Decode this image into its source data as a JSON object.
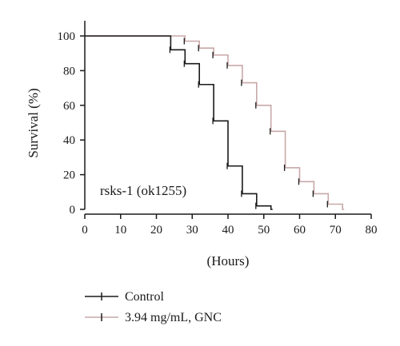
{
  "chart_data": {
    "type": "line",
    "step": true,
    "xlabel": "(Hours)",
    "ylabel": "Survival (%)",
    "xlim": [
      0,
      80
    ],
    "ylim": [
      0,
      100
    ],
    "x_ticks": [
      "0",
      "10",
      "20",
      "30",
      "40",
      "50",
      "60",
      "70",
      "80"
    ],
    "y_ticks": [
      "0",
      "20",
      "40",
      "60",
      "80",
      "100"
    ],
    "grid": false,
    "legend_position": "bottom-left",
    "annotation": "rsks-1 (ok1255)",
    "series": [
      {
        "name": "Control",
        "color": "#1a1a1a",
        "x": [
          0,
          24,
          28,
          32,
          36,
          40,
          44,
          48,
          52
        ],
        "y": [
          100,
          92,
          84,
          72,
          51,
          25,
          9,
          2,
          0
        ]
      },
      {
        "name": "3.94 mg/mL, GNC",
        "color": "#c9a8a8",
        "x": [
          0,
          28,
          32,
          36,
          40,
          44,
          48,
          52,
          56,
          60,
          64,
          68,
          72
        ],
        "y": [
          100,
          97,
          93,
          89,
          83,
          73,
          60,
          45,
          24,
          16,
          9,
          3,
          0
        ]
      }
    ]
  }
}
